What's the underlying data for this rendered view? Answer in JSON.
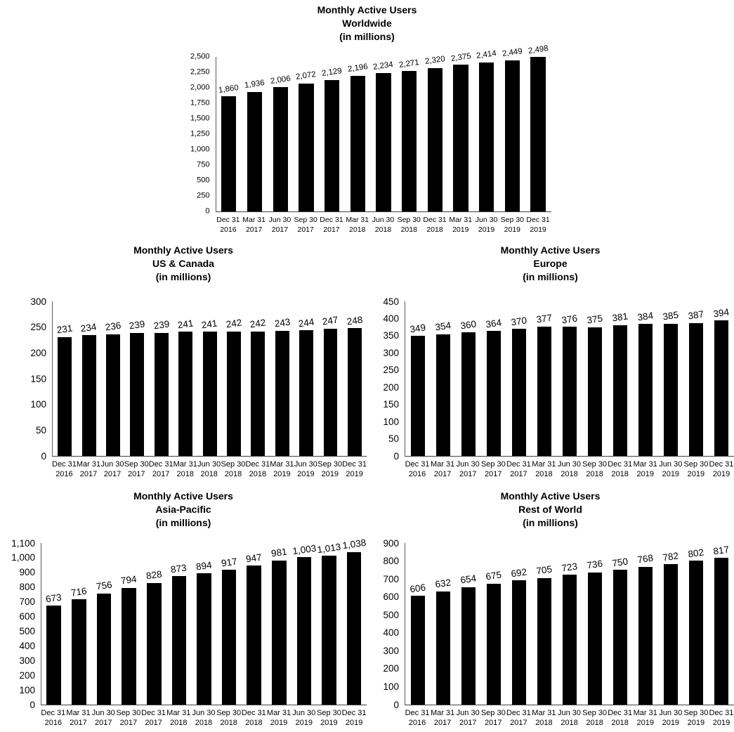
{
  "page": {
    "background": "#ffffff",
    "text_color": "#000000",
    "bar_color": "#000000",
    "axis_color": "#595959"
  },
  "categories": [
    "Dec 31 2016",
    "Mar 31 2017",
    "Jun 30 2017",
    "Sep 30 2017",
    "Dec 31 2017",
    "Mar 31 2018",
    "Jun 30 2018",
    "Sep 30 2018",
    "Dec 31 2018",
    "Mar 31 2019",
    "Jun 30 2019",
    "Sep 30 2019",
    "Dec 31 2019"
  ],
  "chart_data": [
    {
      "id": "worldwide",
      "type": "bar",
      "title": "Monthly Active Users Worldwide (in millions)",
      "title_lines": [
        "Monthly Active Users",
        "Worldwide",
        "(in millions)"
      ],
      "categories": [
        "Dec 31 2016",
        "Mar 31 2017",
        "Jun 30 2017",
        "Sep 30 2017",
        "Dec 31 2017",
        "Mar 31 2018",
        "Jun 30 2018",
        "Sep 30 2018",
        "Dec 31 2018",
        "Mar 31 2019",
        "Jun 30 2019",
        "Sep 30 2019",
        "Dec 31 2019"
      ],
      "values": [
        1860,
        1936,
        2006,
        2072,
        2129,
        2196,
        2234,
        2271,
        2320,
        2375,
        2414,
        2449,
        2498
      ],
      "data_labels": [
        "1,860",
        "1,936",
        "2,006",
        "2,072",
        "2,129",
        "2,196",
        "2,234",
        "2,271",
        "2,320",
        "2,375",
        "2,414",
        "2,449",
        "2,498"
      ],
      "xlabel": "",
      "ylabel": "",
      "ylim": [
        0,
        2500
      ],
      "yticks": [
        0,
        250,
        500,
        750,
        1000,
        1250,
        1500,
        1750,
        2000,
        2250,
        2500
      ],
      "ytick_labels": [
        "0",
        "250",
        "500",
        "750",
        "1,000",
        "1,250",
        "1,500",
        "1,750",
        "2,000",
        "2,250",
        "2,500"
      ],
      "grid": false,
      "legend": "none"
    },
    {
      "id": "us-canada",
      "type": "bar",
      "title": "Monthly Active Users US & Canada (in millions)",
      "title_lines": [
        "Monthly Active Users",
        "US & Canada",
        "(in millions)"
      ],
      "categories": [
        "Dec 31 2016",
        "Mar 31 2017",
        "Jun 30 2017",
        "Sep 30 2017",
        "Dec 31 2017",
        "Mar 31 2018",
        "Jun 30 2018",
        "Sep 30 2018",
        "Dec 31 2018",
        "Mar 31 2019",
        "Jun 30 2019",
        "Sep 30 2019",
        "Dec 31 2019"
      ],
      "values": [
        231,
        234,
        236,
        239,
        239,
        241,
        241,
        242,
        242,
        243,
        244,
        247,
        248
      ],
      "data_labels": [
        "231",
        "234",
        "236",
        "239",
        "239",
        "241",
        "241",
        "242",
        "242",
        "243",
        "244",
        "247",
        "248"
      ],
      "xlabel": "",
      "ylabel": "",
      "ylim": [
        0,
        300
      ],
      "yticks": [
        0,
        50,
        100,
        150,
        200,
        250,
        300
      ],
      "ytick_labels": [
        "0",
        "50",
        "100",
        "150",
        "200",
        "250",
        "300"
      ],
      "grid": false,
      "legend": "none"
    },
    {
      "id": "europe",
      "type": "bar",
      "title": "Monthly Active Users Europe (in millions)",
      "title_lines": [
        "Monthly Active Users",
        "Europe",
        "(in millions)"
      ],
      "categories": [
        "Dec 31 2016",
        "Mar 31 2017",
        "Jun 30 2017",
        "Sep 30 2017",
        "Dec 31 2017",
        "Mar 31 2018",
        "Jun 30 2018",
        "Sep 30 2018",
        "Dec 31 2018",
        "Mar 31 2019",
        "Jun 30 2019",
        "Sep 30 2019",
        "Dec 31 2019"
      ],
      "values": [
        349,
        354,
        360,
        364,
        370,
        377,
        376,
        375,
        381,
        384,
        385,
        387,
        394
      ],
      "data_labels": [
        "349",
        "354",
        "360",
        "364",
        "370",
        "377",
        "376",
        "375",
        "381",
        "384",
        "385",
        "387",
        "394"
      ],
      "xlabel": "",
      "ylabel": "",
      "ylim": [
        0,
        450
      ],
      "yticks": [
        0,
        50,
        100,
        150,
        200,
        250,
        300,
        350,
        400,
        450
      ],
      "ytick_labels": [
        "0",
        "50",
        "100",
        "150",
        "200",
        "250",
        "300",
        "350",
        "400",
        "450"
      ],
      "grid": false,
      "legend": "none"
    },
    {
      "id": "asia-pacific",
      "type": "bar",
      "title": "Monthly Active Users Asia-Pacific (in millions)",
      "title_lines": [
        "Monthly Active Users",
        "Asia-Pacific",
        "(in millions)"
      ],
      "categories": [
        "Dec 31 2016",
        "Mar 31 2017",
        "Jun 30 2017",
        "Sep 30 2017",
        "Dec 31 2017",
        "Mar 31 2018",
        "Jun 30 2018",
        "Sep 30 2018",
        "Dec 31 2018",
        "Mar 31 2019",
        "Jun 30 2019",
        "Sep 30 2019",
        "Dec 31 2019"
      ],
      "values": [
        673,
        716,
        756,
        794,
        828,
        873,
        894,
        917,
        947,
        981,
        1003,
        1013,
        1038
      ],
      "data_labels": [
        "673",
        "716",
        "756",
        "794",
        "828",
        "873",
        "894",
        "917",
        "947",
        "981",
        "1,003",
        "1,013",
        "1,038"
      ],
      "xlabel": "",
      "ylabel": "",
      "ylim": [
        0,
        1100
      ],
      "yticks": [
        0,
        100,
        200,
        300,
        400,
        500,
        600,
        700,
        800,
        900,
        1000,
        1100
      ],
      "ytick_labels": [
        "0",
        "100",
        "200",
        "300",
        "400",
        "500",
        "600",
        "700",
        "800",
        "900",
        "1,000",
        "1,100"
      ],
      "grid": false,
      "legend": "none"
    },
    {
      "id": "rest-of-world",
      "type": "bar",
      "title": "Monthly Active Users Rest of World (in millions)",
      "title_lines": [
        "Monthly Active Users",
        "Rest of World",
        "(in millions)"
      ],
      "categories": [
        "Dec 31 2016",
        "Mar 31 2017",
        "Jun 30 2017",
        "Sep 30 2017",
        "Dec 31 2017",
        "Mar 31 2018",
        "Jun 30 2018",
        "Sep 30 2018",
        "Dec 31 2018",
        "Mar 31 2019",
        "Jun 30 2019",
        "Sep 30 2019",
        "Dec 31 2019"
      ],
      "values": [
        606,
        632,
        654,
        675,
        692,
        705,
        723,
        736,
        750,
        768,
        782,
        802,
        817
      ],
      "data_labels": [
        "606",
        "632",
        "654",
        "675",
        "692",
        "705",
        "723",
        "736",
        "750",
        "768",
        "782",
        "802",
        "817"
      ],
      "xlabel": "",
      "ylabel": "",
      "ylim": [
        0,
        900
      ],
      "yticks": [
        0,
        100,
        200,
        300,
        400,
        500,
        600,
        700,
        800,
        900
      ],
      "ytick_labels": [
        "0",
        "100",
        "200",
        "300",
        "400",
        "500",
        "600",
        "700",
        "800",
        "900"
      ],
      "grid": false,
      "legend": "none"
    }
  ]
}
